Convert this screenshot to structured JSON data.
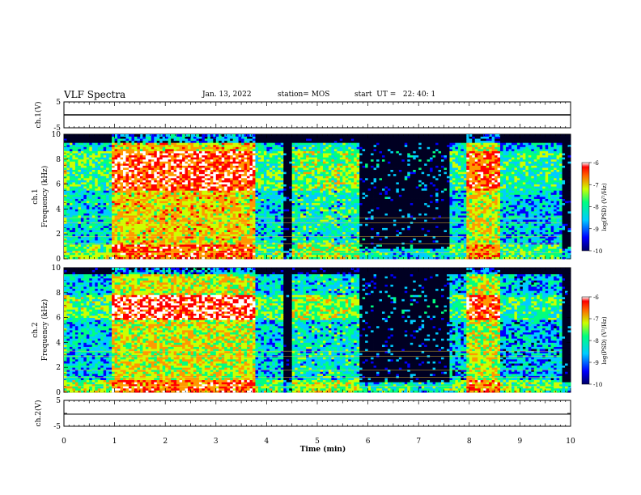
{
  "header": {
    "title": "VLF Spectra",
    "date": "Jan. 13, 2022",
    "station": "station= MOS",
    "start": "start  UT =   22: 40: 1"
  },
  "chart_data": [
    {
      "type": "line",
      "panel": "ch.1 waveform",
      "ylabel": "ch.1(V)",
      "ylim": [
        -5,
        5
      ],
      "yticks": [
        "5",
        "-5"
      ],
      "xlim": [
        0,
        10
      ],
      "series": [
        {
          "x": [
            0,
            10
          ],
          "values": [
            0,
            0
          ]
        }
      ]
    },
    {
      "type": "heatmap",
      "panel": "ch.1 spectrogram",
      "ylabel_lines": [
        "ch.1",
        "Frequency  (kHz)"
      ],
      "ylim": [
        0,
        10
      ],
      "yticks": [
        "0",
        "2",
        "4",
        "6",
        "8",
        "10"
      ],
      "xlim": [
        0,
        10
      ],
      "colorbar": {
        "label": "log(PSD) (V²/Hz)",
        "range": [
          -10,
          -6
        ],
        "ticks": [
          "-6",
          "-7",
          "-8",
          "-9",
          "-10"
        ]
      }
    },
    {
      "type": "heatmap",
      "panel": "ch.2 spectrogram",
      "ylabel_lines": [
        "ch.2",
        "Frequency  (kHz)"
      ],
      "ylim": [
        0,
        10
      ],
      "yticks": [
        "0",
        "2",
        "4",
        "6",
        "8",
        "10"
      ],
      "xlim": [
        0,
        10
      ],
      "colorbar": {
        "label": "log(PSD) (V²/Hz)",
        "range": [
          -10,
          -6
        ],
        "ticks": [
          "-6",
          "-7",
          "-8",
          "-9",
          "-10"
        ]
      }
    },
    {
      "type": "line",
      "panel": "ch.2 waveform",
      "ylabel": "ch.2(V)",
      "ylim": [
        -5,
        5
      ],
      "yticks": [
        "5",
        "-5"
      ],
      "xlim": [
        0,
        10
      ],
      "xlabel": "Time  (min)",
      "xticks": [
        "0",
        "1",
        "2",
        "3",
        "4",
        "5",
        "6",
        "7",
        "8",
        "9",
        "10"
      ],
      "series": [
        {
          "x": [
            0,
            10
          ],
          "values": [
            0,
            0
          ]
        }
      ]
    }
  ],
  "colors": {
    "colormap": [
      "#000066",
      "#0000ff",
      "#00ccff",
      "#00ff80",
      "#ccff00",
      "#ff9900",
      "#ff0000",
      "#ffffff"
    ],
    "quiet_background": "#000022"
  }
}
